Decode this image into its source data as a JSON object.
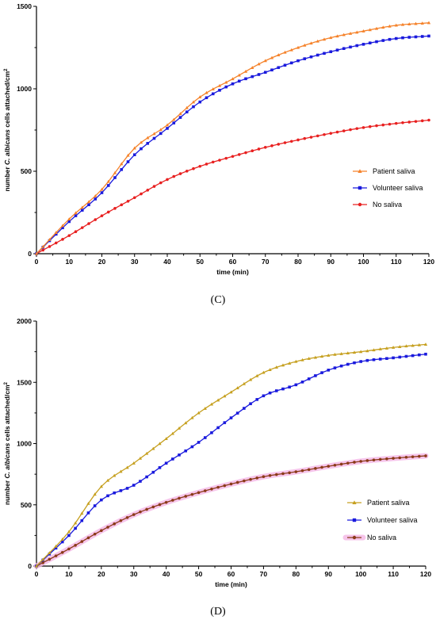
{
  "chart_data": [
    {
      "type": "line",
      "panel_label": "(C)",
      "xlabel": "time (min)",
      "ylabel_prefix": "number ",
      "ylabel_italic": "C. albicans",
      "ylabel_suffix": " cells attached/cm",
      "ylabel_sup": "2",
      "xlim": [
        0,
        120
      ],
      "ylim": [
        0,
        1500
      ],
      "xticks": [
        0,
        10,
        20,
        30,
        40,
        50,
        60,
        70,
        80,
        90,
        100,
        110,
        120
      ],
      "yticks": [
        0,
        500,
        1000,
        1500
      ],
      "legend_position": "right-middle",
      "x": [
        0,
        10,
        20,
        30,
        40,
        50,
        60,
        70,
        80,
        90,
        100,
        110,
        120
      ],
      "series": [
        {
          "name": "Patient saliva",
          "color": "#f5822a",
          "marker": "triangle",
          "values": [
            0,
            210,
            390,
            640,
            780,
            950,
            1060,
            1170,
            1250,
            1310,
            1350,
            1385,
            1400
          ]
        },
        {
          "name": "Volunteer saliva",
          "color": "#1a1add",
          "marker": "square",
          "values": [
            0,
            195,
            370,
            600,
            760,
            920,
            1030,
            1100,
            1170,
            1225,
            1270,
            1305,
            1320
          ]
        },
        {
          "name": "No saliva",
          "color": "#e82020",
          "marker": "circle",
          "values": [
            0,
            110,
            230,
            340,
            450,
            530,
            590,
            645,
            690,
            730,
            765,
            790,
            810
          ]
        }
      ]
    },
    {
      "type": "line",
      "panel_label": "(D)",
      "xlabel": "time (min)",
      "ylabel_prefix": "number ",
      "ylabel_italic": "C. albicans",
      "ylabel_suffix": " cells attached/cm",
      "ylabel_sup": "2",
      "xlim": [
        0,
        120
      ],
      "ylim": [
        0,
        2000
      ],
      "xticks": [
        0,
        10,
        20,
        30,
        40,
        50,
        60,
        70,
        80,
        90,
        100,
        110,
        120
      ],
      "yticks": [
        0,
        500,
        1000,
        1500,
        2000
      ],
      "legend_position": "right-lower",
      "x": [
        0,
        10,
        20,
        30,
        40,
        50,
        60,
        70,
        80,
        90,
        100,
        110,
        120
      ],
      "series": [
        {
          "name": "Patient saliva",
          "color": "#c6a020",
          "marker": "triangle",
          "values": [
            0,
            280,
            650,
            840,
            1040,
            1250,
            1420,
            1580,
            1670,
            1720,
            1750,
            1785,
            1810
          ]
        },
        {
          "name": "Volunteer saliva",
          "color": "#1a1add",
          "marker": "square",
          "values": [
            0,
            250,
            540,
            660,
            840,
            1010,
            1210,
            1390,
            1480,
            1600,
            1670,
            1700,
            1730
          ]
        },
        {
          "name": "No saliva",
          "color": "#8b3a18",
          "marker": "circle",
          "halo": "#f4b6e6",
          "values": [
            0,
            140,
            290,
            420,
            520,
            600,
            670,
            730,
            770,
            815,
            855,
            880,
            900
          ]
        }
      ]
    }
  ]
}
